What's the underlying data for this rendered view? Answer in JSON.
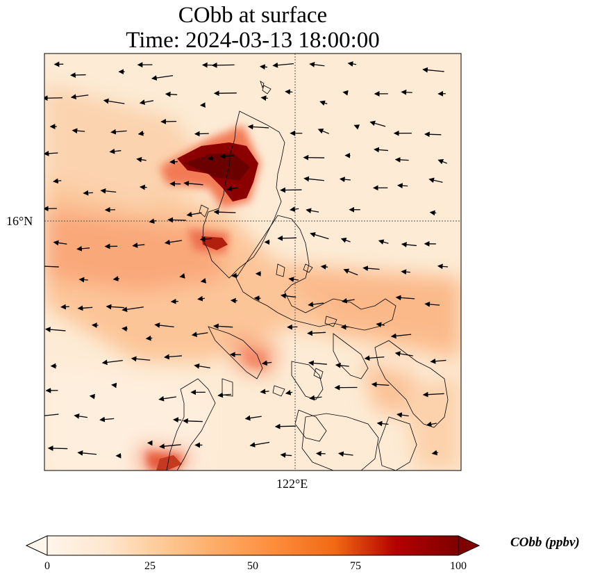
{
  "title": {
    "line1": "CObb at surface",
    "line2": "Time: 2024-03-13 18:00:00"
  },
  "map": {
    "lat_tick_label": "16°N",
    "lon_tick_label": "122°E",
    "field": "CObb",
    "units": "ppbv"
  },
  "colorbar": {
    "label": "CObb (ppbv)",
    "min": 0,
    "max": 100,
    "ticks": [
      "0",
      "25",
      "50",
      "75",
      "100"
    ],
    "colors": [
      "#fff5eb",
      "#fdd9b0",
      "#fdbd84",
      "#fd9c60",
      "#f57245",
      "#e0472a",
      "#b3000c",
      "#7f0000"
    ]
  },
  "chart_data": {
    "type": "heatmap",
    "title": "CObb at surface / Time: 2024-03-13 18:00:00",
    "variable": "CObb",
    "units": "ppbv",
    "lat_ticks": [
      "16°N"
    ],
    "lon_ticks": [
      "122°E"
    ],
    "value_range": [
      0,
      100
    ],
    "colorbar_ticks": [
      0,
      25,
      50,
      75,
      100
    ]
  }
}
